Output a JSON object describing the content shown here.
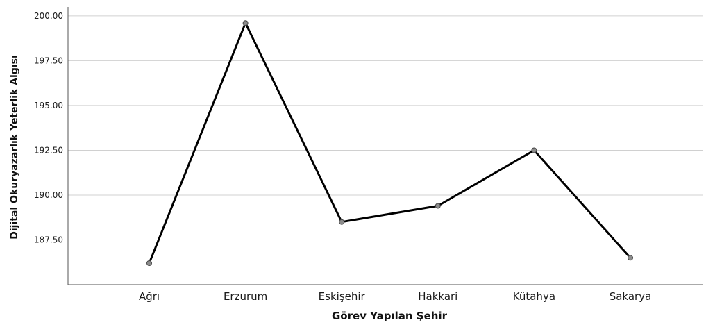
{
  "chart_data": {
    "type": "line",
    "categories": [
      "Ağrı",
      "Erzurum",
      "Eskişehir",
      "Hakkari",
      "Kütahya",
      "Sakarya"
    ],
    "values": [
      186.2,
      199.6,
      188.5,
      189.4,
      192.5,
      186.5
    ],
    "xlabel": "Görev Yapılan Şehir",
    "ylabel": "Dijital Okuryazarlık Yeterlik Algısı",
    "ylim": [
      185.0,
      200.5
    ],
    "yticks": [
      "187.50",
      "190.00",
      "192.50",
      "195.00",
      "197.50",
      "200.00"
    ],
    "grid": true,
    "colors": {
      "line": "#000000",
      "marker": "#8c8c8c",
      "grid": "#d0d0d0",
      "axis": "#555555"
    }
  }
}
